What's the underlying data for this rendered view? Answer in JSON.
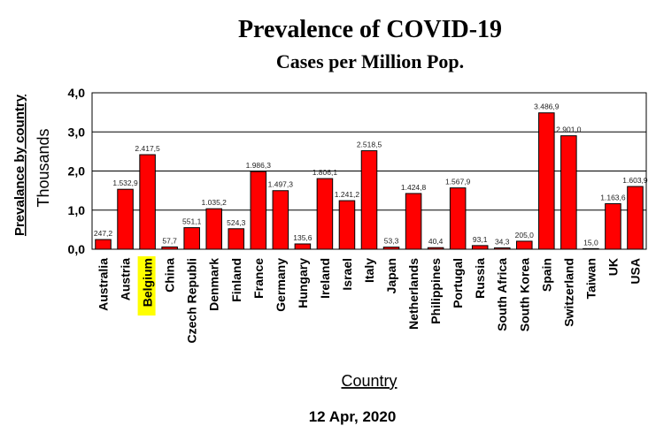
{
  "chart_data": {
    "type": "bar",
    "title": "Prevalence of COVID-19",
    "subtitle": "Cases per Million Pop.",
    "ylabel": "Prevalance by country",
    "yunit": "Thousands",
    "xlabel": "Country",
    "footer": "12 Apr, 2020",
    "ylim": [
      0,
      4.0
    ],
    "yticks": [
      "0,0",
      "1,0",
      "2,0",
      "3,0",
      "4,0"
    ],
    "grid": true,
    "bar_color": "#ff0000",
    "highlight_color": "#ffff00",
    "highlighted_category": "Belgium",
    "categories": [
      "Australia",
      "Austria",
      "Belgium",
      "China",
      "Czech Republi",
      "Denmark",
      "Finland",
      "France",
      "Germany",
      "Hungary",
      "Ireland",
      "Israel",
      "Italy",
      "Japan",
      "Netherlands",
      "Philippines",
      "Portugal",
      "Russia",
      "South Africa",
      "South Korea",
      "Spain",
      "Switzerland",
      "Taiwan",
      "UK",
      "USA"
    ],
    "values": [
      247.2,
      1532.9,
      2417.5,
      57.7,
      551.1,
      1035.2,
      524.3,
      1986.3,
      1497.3,
      135.6,
      1806.1,
      1241.2,
      2518.5,
      53.3,
      1424.8,
      40.4,
      1567.9,
      93.1,
      34.3,
      205.0,
      3486.9,
      2901.0,
      15.0,
      1163.6,
      1603.9
    ],
    "data_labels": [
      "247,2",
      "1.532,9",
      "2.417,5",
      "57,7",
      "551,1",
      "1.035,2",
      "524,3",
      "1.986,3",
      "1.497,3",
      "135,6",
      "1.806,1",
      "1.241,2",
      "2.518,5",
      "53,3",
      "1.424,8",
      "40,4",
      "1.567,9",
      "93,1",
      "34,3",
      "205,0",
      "3.486,9",
      "2.901,0",
      "15,0",
      "1.163,6",
      "1.603,9"
    ]
  }
}
